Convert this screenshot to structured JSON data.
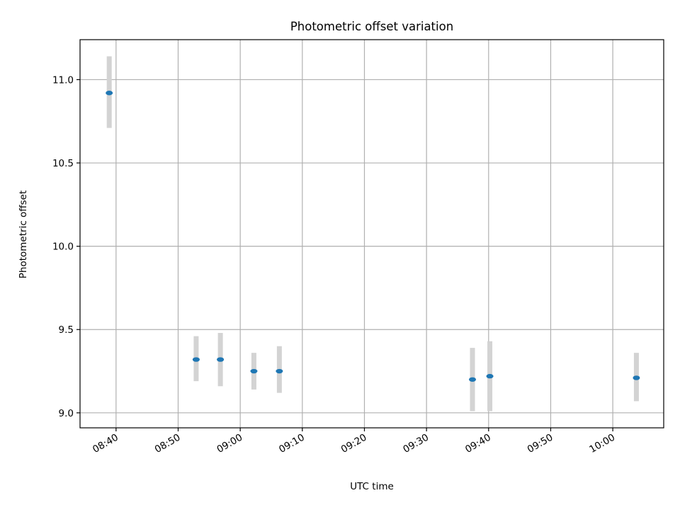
{
  "chart_data": {
    "type": "scatter",
    "title": "Photometric offset variation",
    "xlabel": "UTC time",
    "ylabel": "Photometric offset",
    "x_ticks": [
      "08:40",
      "08:50",
      "09:00",
      "09:10",
      "09:20",
      "09:30",
      "09:40",
      "09:50",
      "10:00"
    ],
    "y_ticks": [
      "9.0",
      "9.5",
      "10.0",
      "10.5",
      "11.0"
    ],
    "xlim": [
      "08:34:12",
      "10:08:12"
    ],
    "ylim": [
      8.91,
      11.24
    ],
    "grid": true,
    "points": [
      {
        "x": "08:38:54",
        "y": 10.92,
        "err_low": 10.71,
        "err_high": 11.14
      },
      {
        "x": "08:52:54",
        "y": 9.32,
        "err_low": 9.19,
        "err_high": 9.46
      },
      {
        "x": "08:56:48",
        "y": 9.32,
        "err_low": 9.16,
        "err_high": 9.48
      },
      {
        "x": "09:02:12",
        "y": 9.25,
        "err_low": 9.14,
        "err_high": 9.36
      },
      {
        "x": "09:06:18",
        "y": 9.25,
        "err_low": 9.12,
        "err_high": 9.4
      },
      {
        "x": "09:37:24",
        "y": 9.2,
        "err_low": 9.01,
        "err_high": 9.39
      },
      {
        "x": "09:40:12",
        "y": 9.22,
        "err_low": 9.01,
        "err_high": 9.43
      },
      {
        "x": "10:03:48",
        "y": 9.21,
        "err_low": 9.07,
        "err_high": 9.36
      }
    ],
    "colors": {
      "marker": "#1f77b4",
      "errorbar": "#d3d3d3",
      "grid": "#b0b0b0"
    }
  }
}
